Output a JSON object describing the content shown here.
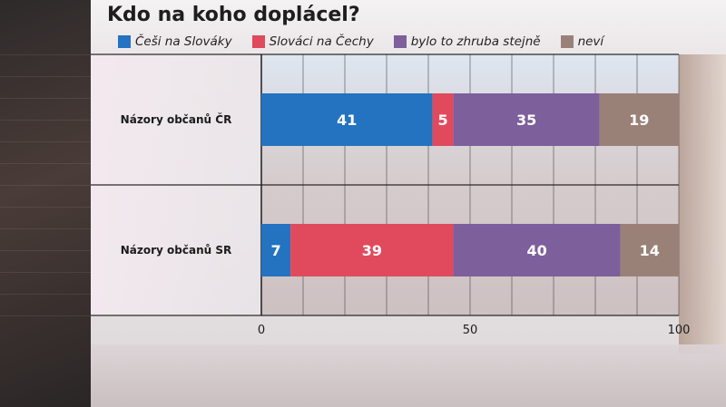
{
  "chart_data": {
    "type": "bar",
    "orientation": "horizontal",
    "stacked": true,
    "title": "Kdo na koho doplácel?",
    "categories": [
      "Názory občanů ČR",
      "Názory občanů SR"
    ],
    "series": [
      {
        "name": "Češi na Slováky",
        "values": [
          41,
          7
        ],
        "color": "#2373c0"
      },
      {
        "name": "Slováci na Čechy",
        "values": [
          5,
          39
        ],
        "color": "#e04a5c"
      },
      {
        "name": "bylo to zhruba stejně",
        "values": [
          35,
          40
        ],
        "color": "#7d5f9c"
      },
      {
        "name": "neví",
        "values": [
          19,
          14
        ],
        "color": "#9a8178"
      }
    ],
    "xlim": [
      0,
      100
    ],
    "xticks": [
      0,
      50,
      100
    ],
    "grid": true,
    "legend_position": "top"
  }
}
